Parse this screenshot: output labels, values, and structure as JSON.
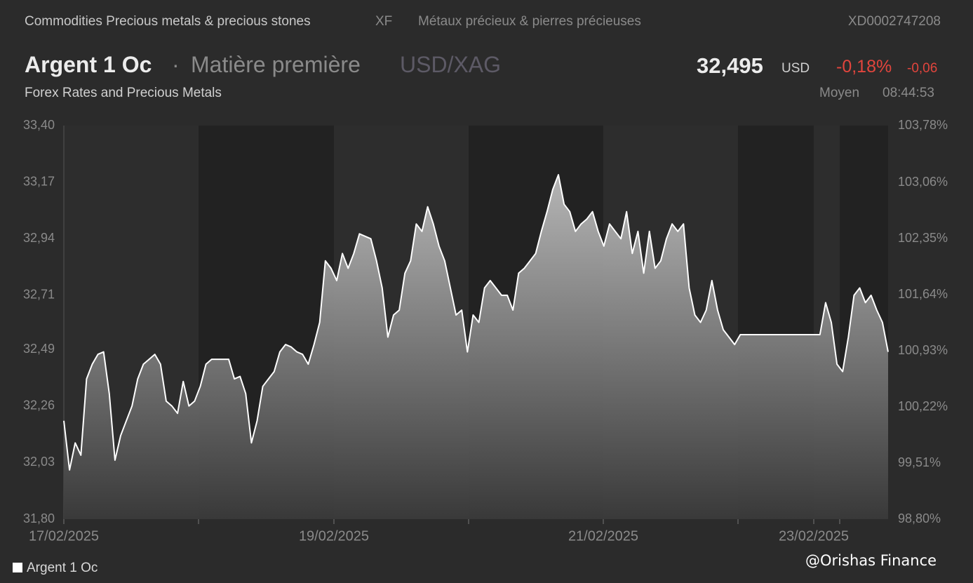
{
  "header": {
    "category": "Commodities Precious metals & precious stones",
    "exchange": "XF",
    "category_fr": "Métaux précieux & pierres précieuses",
    "isin": "XD0002747208",
    "name": "Argent 1 Oc",
    "separator": "·",
    "kind": "Matière première",
    "pair": "USD/XAG",
    "price": "32,495",
    "currency": "USD",
    "change_pct": "-0,18%",
    "change_abs": "-0,06",
    "source": "Forex Rates and Precious Metals",
    "price_type": "Moyen",
    "time": "08:44:53"
  },
  "chart_data": {
    "type": "area",
    "x_labels": [
      "17/02/2025",
      null,
      "19/02/2025",
      null,
      "21/02/2025",
      null,
      "23/02/2025",
      null
    ],
    "series": [
      {
        "name": "Argent 1 Oc",
        "color": "#ffffff",
        "values": [
          32.2,
          32.0,
          32.11,
          32.06,
          32.37,
          32.43,
          32.47,
          32.48,
          32.31,
          32.04,
          32.14,
          32.2,
          32.26,
          32.37,
          32.43,
          32.45,
          32.47,
          32.43,
          32.28,
          32.26,
          32.23,
          32.36,
          32.26,
          32.28,
          32.34,
          32.43,
          32.45,
          32.45,
          32.45,
          32.45,
          32.37,
          32.38,
          32.31,
          32.11,
          32.2,
          32.34,
          32.37,
          32.4,
          32.48,
          32.51,
          32.5,
          32.48,
          32.47,
          32.43,
          32.51,
          32.6,
          32.85,
          32.82,
          32.77,
          32.88,
          32.82,
          32.88,
          32.96,
          32.95,
          32.94,
          32.85,
          32.74,
          32.54,
          32.63,
          32.65,
          32.8,
          32.85,
          33.0,
          32.97,
          33.07,
          33.0,
          32.91,
          32.85,
          32.74,
          32.63,
          32.65,
          32.48,
          32.63,
          32.6,
          32.74,
          32.77,
          32.74,
          32.71,
          32.71,
          32.65,
          32.8,
          32.82,
          32.85,
          32.88,
          32.97,
          33.05,
          33.14,
          33.2,
          33.08,
          33.05,
          32.97,
          33.0,
          33.02,
          33.05,
          32.97,
          32.91,
          33.0,
          32.97,
          32.94,
          33.05,
          32.88,
          32.97,
          32.8,
          32.97,
          32.82,
          32.85,
          32.94,
          33.0,
          32.97,
          33.0,
          32.74,
          32.63,
          32.6,
          32.65,
          32.77,
          32.65,
          32.57,
          32.54,
          32.51,
          32.55,
          32.55,
          32.55,
          32.55,
          32.55,
          32.55,
          32.55,
          32.55,
          32.55,
          32.55,
          32.55,
          32.55,
          32.55,
          32.55,
          32.55,
          32.68,
          32.6,
          32.43,
          32.4,
          32.54,
          32.71,
          32.74,
          32.68,
          32.71,
          32.65,
          32.6,
          32.48
        ]
      }
    ],
    "ylim": [
      31.8,
      33.4
    ],
    "yticks": [
      {
        "value": 33.4,
        "label": "33,40"
      },
      {
        "value": 33.17,
        "label": "33,17"
      },
      {
        "value": 32.94,
        "label": "32,94"
      },
      {
        "value": 32.71,
        "label": "32,71"
      },
      {
        "value": 32.49,
        "label": "32,49"
      },
      {
        "value": 32.26,
        "label": "32,26"
      },
      {
        "value": 32.03,
        "label": "32,03"
      },
      {
        "value": 31.8,
        "label": "31,80"
      }
    ],
    "y2lim": [
      98.8,
      103.78
    ],
    "y2ticks": [
      {
        "value": 103.78,
        "label": "103,78%"
      },
      {
        "value": 103.06,
        "label": "103,06%"
      },
      {
        "value": 102.35,
        "label": "102,35%"
      },
      {
        "value": 101.64,
        "label": "101,64%"
      },
      {
        "value": 100.93,
        "label": "100,93%"
      },
      {
        "value": 100.22,
        "label": "100,22%"
      },
      {
        "value": 99.51,
        "label": "99,51%"
      },
      {
        "value": 98.8,
        "label": "98,80%"
      }
    ],
    "watermark": "@Orishas Finance"
  }
}
